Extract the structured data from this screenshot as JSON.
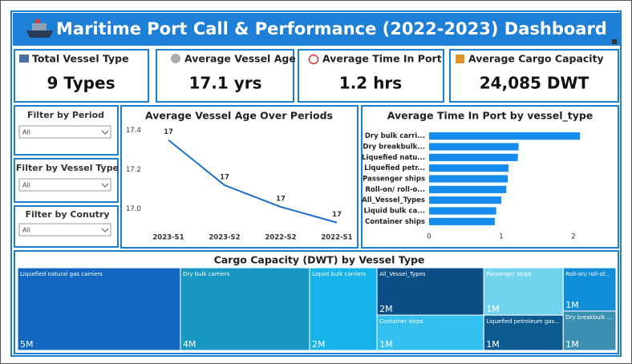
{
  "header": {
    "title": "Maritime Port Call & Performance (2022-2023) Dashboard"
  },
  "kpis": [
    {
      "label": "Total Vessel Type",
      "value": "9 Types"
    },
    {
      "label": "Average Vessel Age",
      "value": "17.1 yrs"
    },
    {
      "label": "Average Time In Port",
      "value": "1.2 hrs"
    },
    {
      "label": "Average Cargo Capacity",
      "value": "24,085 DWT"
    }
  ],
  "filters": [
    {
      "label": "Filter by  Period",
      "selected": "All"
    },
    {
      "label": "Filter by Vessel Type",
      "selected": "All"
    },
    {
      "label": "Filter by Conutry",
      "selected": "All"
    }
  ],
  "chart_data": [
    {
      "type": "line",
      "title": "Average Vessel Age Over Periods",
      "categories": [
        "2023-S1",
        "2023-S2",
        "2022-S2",
        "2022-S1"
      ],
      "values": [
        17.35,
        17.12,
        17.01,
        16.93
      ],
      "value_labels": [
        "17",
        "17",
        "17",
        "17"
      ],
      "color": "#1a6fc9",
      "ylim": [
        16.9,
        17.43
      ],
      "yticks": [
        {
          "value": 17,
          "label": "17.0"
        },
        17.2,
        17.4
      ]
    },
    {
      "type": "hbar",
      "title": "Average Time In Port by vessel_type",
      "categories": [
        "Dry bulk carri...",
        "Dry breakbulk...",
        "Liquefied natu...",
        "Liquefied petr...",
        "Passenger ships",
        "Roll-on/ roll-o...",
        "All_Vessel_Types",
        "Liquid bulk ca...",
        "Container ships"
      ],
      "values": [
        2.09,
        1.24,
        1.23,
        1.1,
        1.09,
        1.07,
        1.0,
        0.93,
        0.91
      ],
      "color": "#168cec",
      "xlim": [
        0,
        2.3
      ],
      "xticks": [
        0,
        1,
        2
      ]
    },
    {
      "type": "treemap",
      "title": "Cargo Capacity (DWT) by Vessel Type",
      "categories": [
        "Liquefied natural gas carriers",
        "Dry bulk carriers",
        "Liquid bulk carriers",
        "All_Vessel_Types",
        "Container ships",
        "Passenger ships",
        "Liquefied petroleum gas...",
        "Roll-on/ roll-of...",
        "Dry breakbulk ..."
      ],
      "values": [
        5000000,
        3970000,
        2070000,
        1880000,
        1400000,
        1400000,
        1040000,
        850000,
        770000
      ],
      "value_labels": [
        "5M",
        "4M",
        "2M",
        "2M",
        "1M",
        "1M",
        "1M",
        "1M",
        "1M"
      ],
      "colors": [
        "#1268c0",
        "#1897c2",
        "#16b2ec",
        "#0c4f86",
        "#33bfef",
        "#72d3ee",
        "#0d5a91",
        "#118ed8",
        "#3b8fb1"
      ]
    }
  ]
}
